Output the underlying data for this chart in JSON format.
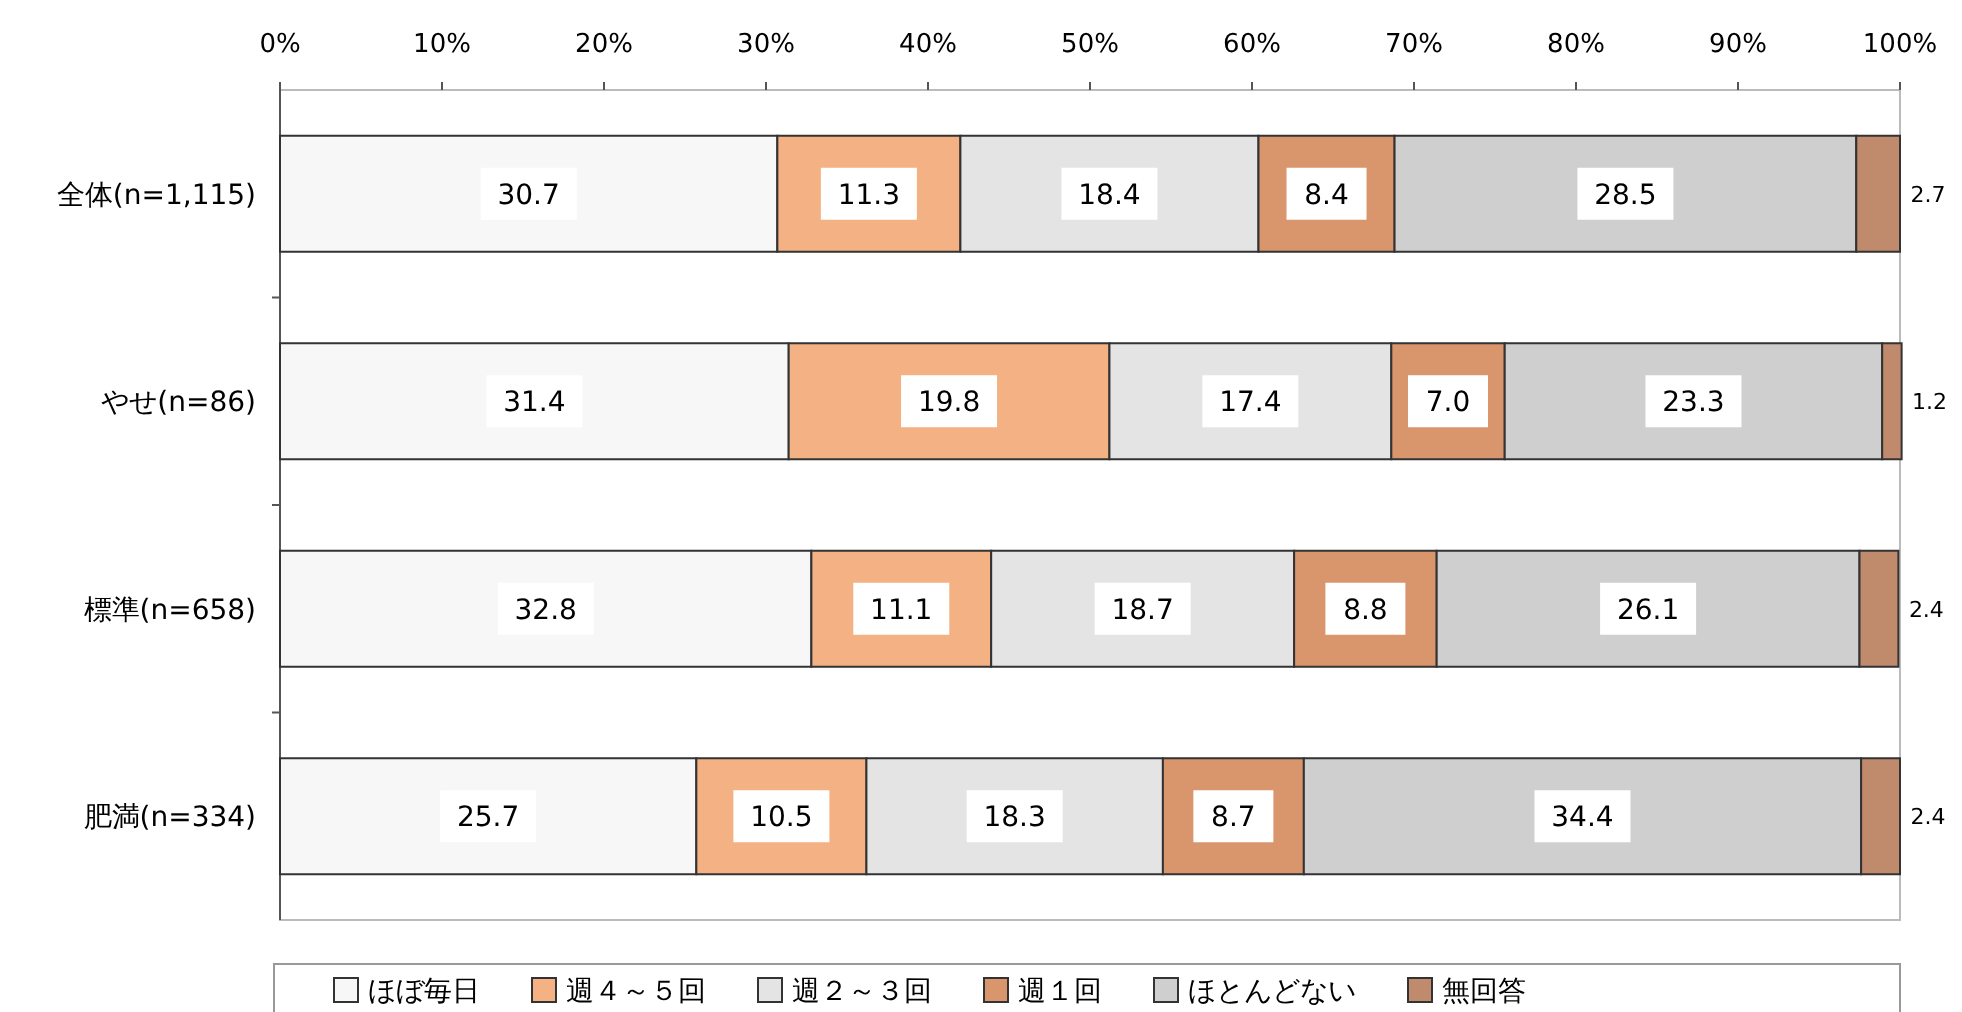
{
  "chart_data": {
    "type": "bar",
    "orientation": "horizontal",
    "stacked": true,
    "legend": "bottom",
    "categories": [
      "全体(n=1,115)",
      "やせ(n=86)",
      "標準(n=658)",
      "肥満(n=334)"
    ],
    "xlim": [
      0,
      100
    ],
    "xticks": [
      {
        "value": 0,
        "label": "0%"
      },
      {
        "value": 10,
        "label": "10%"
      },
      {
        "value": 20,
        "label": "20%"
      },
      {
        "value": 30,
        "label": "30%"
      },
      {
        "value": 40,
        "label": "40%"
      },
      {
        "value": 50,
        "label": "50%"
      },
      {
        "value": 60,
        "label": "60%"
      },
      {
        "value": 70,
        "label": "70%"
      },
      {
        "value": 80,
        "label": "80%"
      },
      {
        "value": 90,
        "label": "90%"
      },
      {
        "value": 100,
        "label": "100%"
      }
    ],
    "series": [
      {
        "name": "ほぼ毎日",
        "color": "#f7f7f7",
        "values": [
          30.7,
          31.4,
          32.8,
          25.7
        ],
        "value_labels": [
          "30.7",
          "31.4",
          "32.8",
          "25.7"
        ]
      },
      {
        "name": "週４～５回",
        "color": "#f4b183",
        "values": [
          11.3,
          19.8,
          11.1,
          10.5
        ],
        "value_labels": [
          "11.3",
          "19.8",
          "11.1",
          "10.5"
        ]
      },
      {
        "name": "週２～３回",
        "color": "#e4e4e4",
        "values": [
          18.4,
          17.4,
          18.7,
          18.3
        ],
        "value_labels": [
          "18.4",
          "17.4",
          "18.7",
          "18.3"
        ]
      },
      {
        "name": "週１回",
        "color": "#d9956b",
        "values": [
          8.4,
          7.0,
          8.8,
          8.7
        ],
        "value_labels": [
          "8.4",
          "7.0",
          "8.8",
          "8.7"
        ]
      },
      {
        "name": "ほとんどない",
        "color": "#cfcfcf",
        "values": [
          28.5,
          23.3,
          26.1,
          34.4
        ],
        "value_labels": [
          "28.5",
          "23.3",
          "26.1",
          "34.4"
        ]
      },
      {
        "name": "無回答",
        "color": "#c08a6c",
        "values": [
          2.7,
          1.2,
          2.4,
          2.4
        ],
        "value_labels": [
          "2.7",
          "1.2",
          "2.4",
          "2.4"
        ]
      }
    ]
  }
}
